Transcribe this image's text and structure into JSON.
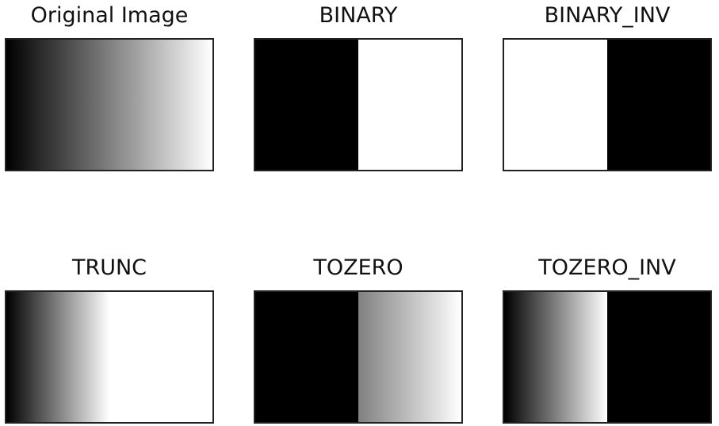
{
  "panels": [
    {
      "title": "Original Image"
    },
    {
      "title": "BINARY"
    },
    {
      "title": "BINARY_INV"
    },
    {
      "title": "TRUNC"
    },
    {
      "title": "TOZERO"
    },
    {
      "title": "TOZERO_INV"
    }
  ],
  "colors": {
    "black": "#000000",
    "white": "#ffffff",
    "mid_gray": "#808080",
    "frame": "#222222"
  }
}
